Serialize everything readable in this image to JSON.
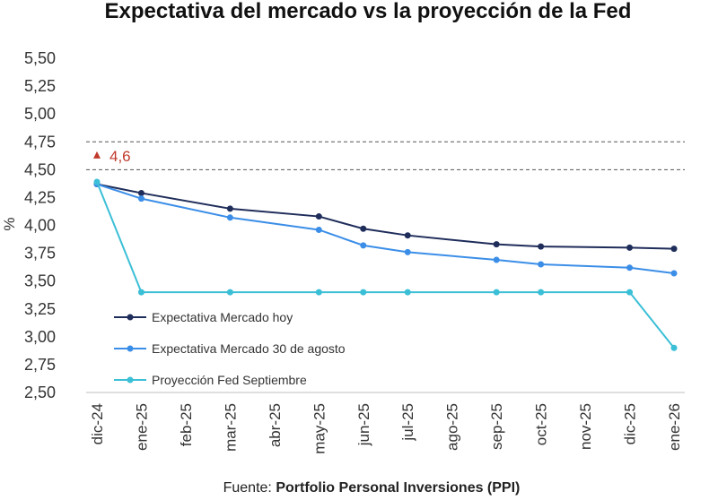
{
  "chart_data": {
    "type": "line",
    "title": "Expectativa del mercado vs la proyección de la Fed",
    "xlabel": "",
    "ylabel": "%",
    "categories": [
      "dic-24",
      "ene-25",
      "feb-25",
      "mar-25",
      "abr-25",
      "may-25",
      "jun-25",
      "jul-25",
      "ago-25",
      "sep-25",
      "oct-25",
      "nov-25",
      "dic-25",
      "ene-26"
    ],
    "y_ticks": [
      "5,50",
      "5,25",
      "5,00",
      "4,75",
      "4,50",
      "4,25",
      "4,00",
      "3,75",
      "3,50",
      "3,25",
      "3,00",
      "2,75",
      "2,50"
    ],
    "ylim": [
      2.5,
      5.5
    ],
    "reference_lines": [
      4.75,
      4.5
    ],
    "annotation": {
      "text": "4,6",
      "value": 4.6,
      "category": "dic-24"
    },
    "series": [
      {
        "name": "Expectativa Mercado hoy",
        "color": "#1f2d5a",
        "points": [
          {
            "x": "dic-24",
            "y": 4.37
          },
          {
            "x": "ene-25",
            "y": 4.29
          },
          {
            "x": "mar-25",
            "y": 4.15
          },
          {
            "x": "may-25",
            "y": 4.08
          },
          {
            "x": "jun-25",
            "y": 3.97
          },
          {
            "x": "jul-25",
            "y": 3.91
          },
          {
            "x": "sep-25",
            "y": 3.83
          },
          {
            "x": "oct-25",
            "y": 3.81
          },
          {
            "x": "dic-25",
            "y": 3.8
          },
          {
            "x": "ene-26",
            "y": 3.79
          }
        ]
      },
      {
        "name": "Expectativa Mercado 30 de agosto",
        "color": "#3b8ee8",
        "points": [
          {
            "x": "dic-24",
            "y": 4.37
          },
          {
            "x": "ene-25",
            "y": 4.24
          },
          {
            "x": "mar-25",
            "y": 4.07
          },
          {
            "x": "may-25",
            "y": 3.96
          },
          {
            "x": "jun-25",
            "y": 3.82
          },
          {
            "x": "jul-25",
            "y": 3.76
          },
          {
            "x": "sep-25",
            "y": 3.69
          },
          {
            "x": "oct-25",
            "y": 3.65
          },
          {
            "x": "dic-25",
            "y": 3.62
          },
          {
            "x": "ene-26",
            "y": 3.57
          }
        ]
      },
      {
        "name": "Proyección Fed Septiembre",
        "color": "#3bbfd6",
        "points": [
          {
            "x": "dic-24",
            "y": 4.39
          },
          {
            "x": "ene-25",
            "y": 3.4
          },
          {
            "x": "mar-25",
            "y": 3.4
          },
          {
            "x": "may-25",
            "y": 3.4
          },
          {
            "x": "jun-25",
            "y": 3.4
          },
          {
            "x": "jul-25",
            "y": 3.4
          },
          {
            "x": "sep-25",
            "y": 3.4
          },
          {
            "x": "oct-25",
            "y": 3.4
          },
          {
            "x": "dic-25",
            "y": 3.4
          },
          {
            "x": "ene-26",
            "y": 2.9
          }
        ]
      }
    ],
    "legend_position": "bottom-left",
    "source_prefix": "Fuente: ",
    "source_name": "Portfolio Personal Inversiones (PPI)"
  }
}
